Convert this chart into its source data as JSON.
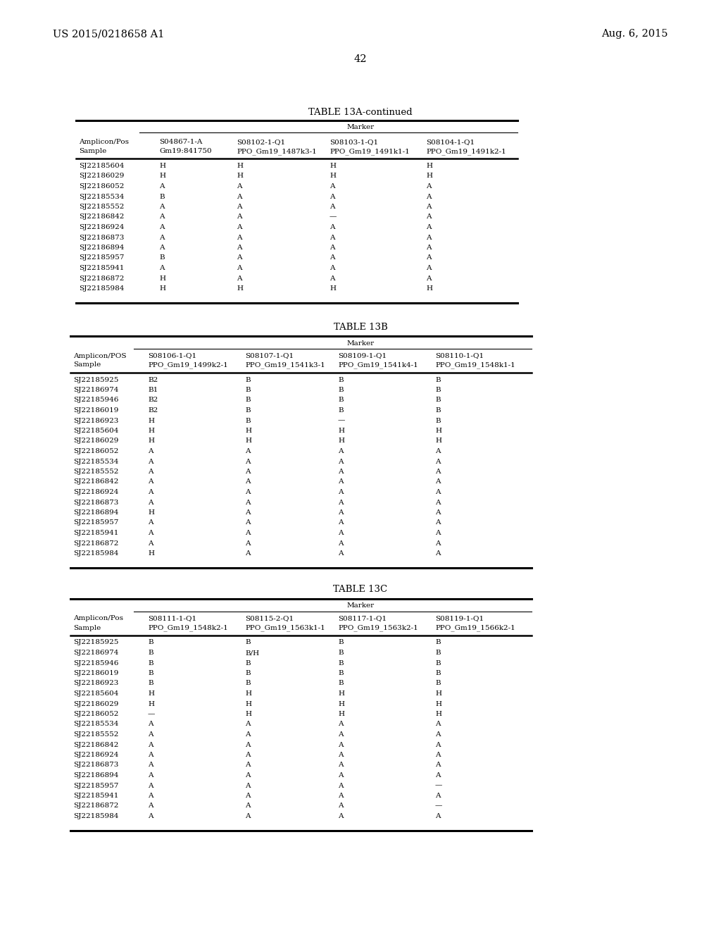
{
  "header_left": "US 2015/0218658 A1",
  "header_right": "Aug. 6, 2015",
  "page_number": "42",
  "background_color": "#ffffff",
  "table13a_title": "TABLE 13A-continued",
  "table13a_marker_label": "Marker",
  "table13a_col_headers": [
    [
      "Amplicon/Pos",
      "S04867-1-A",
      "S08102-1-Q1",
      "S08103-1-Q1",
      "S08104-1-Q1"
    ],
    [
      "Sample",
      "Gm19:841750",
      "PPO_Gm19_1487k3-1",
      "PPO_Gm19_1491k1-1",
      "PPO_Gm19_1491k2-1"
    ]
  ],
  "table13a_rows": [
    [
      "SJ22185604",
      "H",
      "H",
      "H",
      "H"
    ],
    [
      "SJ22186029",
      "H",
      "H",
      "H",
      "H"
    ],
    [
      "SJ22186052",
      "A",
      "A",
      "A",
      "A"
    ],
    [
      "SJ22185534",
      "B",
      "A",
      "A",
      "A"
    ],
    [
      "SJ22185552",
      "A",
      "A",
      "A",
      "A"
    ],
    [
      "SJ22186842",
      "A",
      "A",
      "—",
      "A"
    ],
    [
      "SJ22186924",
      "A",
      "A",
      "A",
      "A"
    ],
    [
      "SJ22186873",
      "A",
      "A",
      "A",
      "A"
    ],
    [
      "SJ22186894",
      "A",
      "A",
      "A",
      "A"
    ],
    [
      "SJ22185957",
      "B",
      "A",
      "A",
      "A"
    ],
    [
      "SJ22185941",
      "A",
      "A",
      "A",
      "A"
    ],
    [
      "SJ22186872",
      "H",
      "A",
      "A",
      "A"
    ],
    [
      "SJ22185984",
      "H",
      "H",
      "H",
      "H"
    ]
  ],
  "table13b_title": "TABLE 13B",
  "table13b_marker_label": "Marker",
  "table13b_col_headers": [
    [
      "Amplicon/POS",
      "S08106-1-Q1",
      "S08107-1-Q1",
      "S08109-1-Q1",
      "S08110-1-Q1"
    ],
    [
      "Sample",
      "PPO_Gm19_1499k2-1",
      "PPO_Gm19_1541k3-1",
      "PPO_Gm19_1541k4-1",
      "PPO_Gm19_1548k1-1"
    ]
  ],
  "table13b_rows": [
    [
      "SJ22185925",
      "B2",
      "B",
      "B",
      "B"
    ],
    [
      "SJ22186974",
      "B1",
      "B",
      "B",
      "B"
    ],
    [
      "SJ22185946",
      "B2",
      "B",
      "B",
      "B"
    ],
    [
      "SJ22186019",
      "B2",
      "B",
      "B",
      "B"
    ],
    [
      "SJ22186923",
      "H",
      "B",
      "—",
      "B"
    ],
    [
      "SJ22185604",
      "H",
      "H",
      "H",
      "H"
    ],
    [
      "SJ22186029",
      "H",
      "H",
      "H",
      "H"
    ],
    [
      "SJ22186052",
      "A",
      "A",
      "A",
      "A"
    ],
    [
      "SJ22185534",
      "A",
      "A",
      "A",
      "A"
    ],
    [
      "SJ22185552",
      "A",
      "A",
      "A",
      "A"
    ],
    [
      "SJ22186842",
      "A",
      "A",
      "A",
      "A"
    ],
    [
      "SJ22186924",
      "A",
      "A",
      "A",
      "A"
    ],
    [
      "SJ22186873",
      "A",
      "A",
      "A",
      "A"
    ],
    [
      "SJ22186894",
      "H",
      "A",
      "A",
      "A"
    ],
    [
      "SJ22185957",
      "A",
      "A",
      "A",
      "A"
    ],
    [
      "SJ22185941",
      "A",
      "A",
      "A",
      "A"
    ],
    [
      "SJ22186872",
      "A",
      "A",
      "A",
      "A"
    ],
    [
      "SJ22185984",
      "H",
      "A",
      "A",
      "A"
    ]
  ],
  "table13c_title": "TABLE 13C",
  "table13c_marker_label": "Marker",
  "table13c_col_headers": [
    [
      "Amplicon/Pos",
      "S08111-1-Q1",
      "S08115-2-Q1",
      "S08117-1-Q1",
      "S08119-1-Q1"
    ],
    [
      "Sample",
      "PPO_Gm19_1548k2-1",
      "PPO_Gm19_1563k1-1",
      "PPO_Gm19_1563k2-1",
      "PPO_Gm19_1566k2-1"
    ]
  ],
  "table13c_rows": [
    [
      "SJ22185925",
      "B",
      "B",
      "B",
      "B"
    ],
    [
      "SJ22186974",
      "B",
      "B/H",
      "B",
      "B"
    ],
    [
      "SJ22185946",
      "B",
      "B",
      "B",
      "B"
    ],
    [
      "SJ22186019",
      "B",
      "B",
      "B",
      "B"
    ],
    [
      "SJ22186923",
      "B",
      "B",
      "B",
      "B"
    ],
    [
      "SJ22185604",
      "H",
      "H",
      "H",
      "H"
    ],
    [
      "SJ22186029",
      "H",
      "H",
      "H",
      "H"
    ],
    [
      "SJ22186052",
      "—",
      "H",
      "H",
      "H"
    ],
    [
      "SJ22185534",
      "A",
      "A",
      "A",
      "A"
    ],
    [
      "SJ22185552",
      "A",
      "A",
      "A",
      "A"
    ],
    [
      "SJ22186842",
      "A",
      "A",
      "A",
      "A"
    ],
    [
      "SJ22186924",
      "A",
      "A",
      "A",
      "A"
    ],
    [
      "SJ22186873",
      "A",
      "A",
      "A",
      "A"
    ],
    [
      "SJ22186894",
      "A",
      "A",
      "A",
      "A"
    ],
    [
      "SJ22185957",
      "A",
      "A",
      "A",
      "—"
    ],
    [
      "SJ22185941",
      "A",
      "A",
      "A",
      "A"
    ],
    [
      "SJ22186872",
      "A",
      "A",
      "A",
      "—"
    ],
    [
      "SJ22185984",
      "A",
      "A",
      "A",
      "A"
    ]
  ]
}
